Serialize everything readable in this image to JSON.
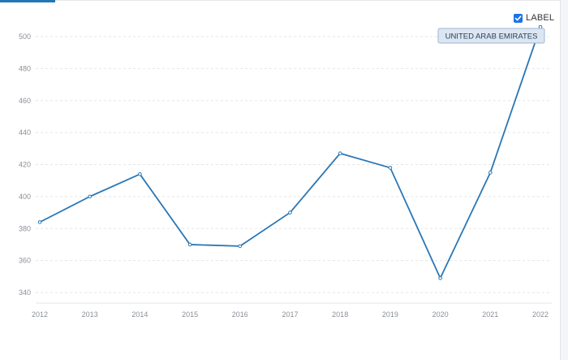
{
  "label_toggle": {
    "text": "LABEL",
    "checked": true
  },
  "chart_data": {
    "type": "line",
    "x": [
      "2012",
      "2013",
      "2014",
      "2015",
      "2016",
      "2017",
      "2018",
      "2019",
      "2020",
      "2021",
      "2022"
    ],
    "series": [
      {
        "name": "UNITED ARAB EMIRATES",
        "values": [
          384,
          400,
          414,
          370,
          369,
          390,
          427,
          418,
          349,
          415,
          506
        ],
        "color": "#2a77b6"
      }
    ],
    "y_ticks": [
      340,
      360,
      380,
      400,
      420,
      440,
      460,
      480,
      500
    ],
    "ylim": [
      335,
      510
    ],
    "grid": true,
    "tooltip": "UNITED ARAB EMIRATES"
  }
}
